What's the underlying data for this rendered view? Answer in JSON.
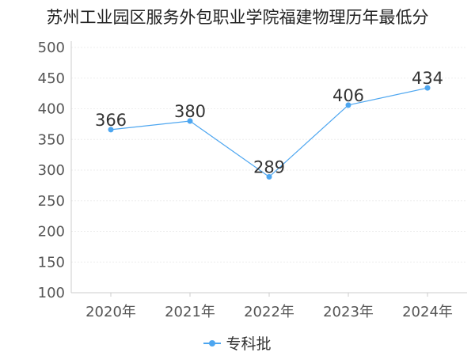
{
  "title": "苏州工业园区服务外包职业学院福建物理历年最低分",
  "colors": {
    "series": "#4DA6F0",
    "grid": "#eeeeee",
    "axis": "#cccccc"
  },
  "chart_data": {
    "type": "line",
    "title": "苏州工业园区服务外包职业学院福建物理历年最低分",
    "xlabel": "",
    "ylabel": "",
    "categories": [
      "2020年",
      "2021年",
      "2022年",
      "2023年",
      "2024年"
    ],
    "series": [
      {
        "name": "专科批",
        "values": [
          366,
          380,
          289,
          406,
          434
        ]
      }
    ],
    "ylim": [
      100,
      500
    ],
    "yticks": [
      100,
      150,
      200,
      250,
      300,
      350,
      400,
      450,
      500
    ],
    "grid": true,
    "legend": "bottom-center"
  }
}
